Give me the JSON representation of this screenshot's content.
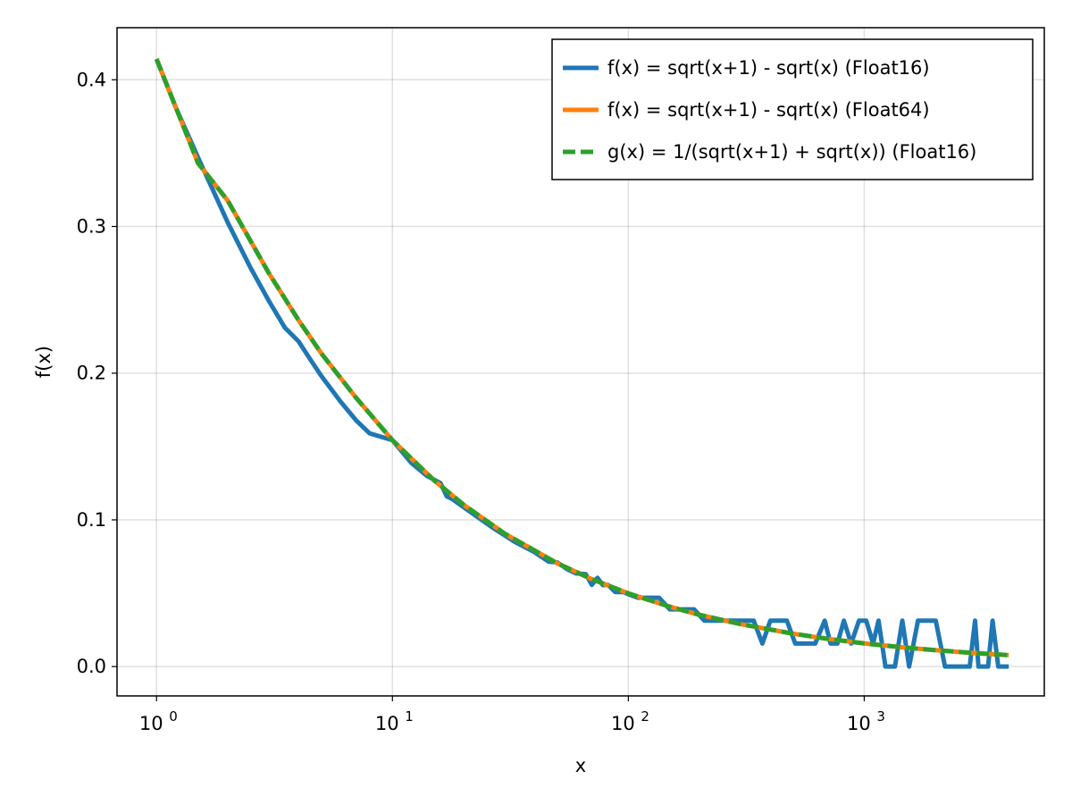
{
  "chart_data": {
    "type": "line",
    "title": "",
    "xlabel": "x",
    "ylabel": "f(x)",
    "xscale": "log10",
    "xlim": [
      0.68,
      5800
    ],
    "ylim": [
      -0.02,
      0.4355
    ],
    "grid": true,
    "legend_position": "top-right",
    "x_ticks": [
      {
        "value": 1,
        "base": "10",
        "exp": "0"
      },
      {
        "value": 10,
        "base": "10",
        "exp": "1"
      },
      {
        "value": 100,
        "base": "10",
        "exp": "2"
      },
      {
        "value": 1000,
        "base": "10",
        "exp": "3"
      }
    ],
    "y_ticks": [
      {
        "value": 0.0,
        "label": "0.0"
      },
      {
        "value": 0.1,
        "label": "0.1"
      },
      {
        "value": 0.2,
        "label": "0.2"
      },
      {
        "value": 0.3,
        "label": "0.3"
      },
      {
        "value": 0.4,
        "label": "0.4"
      }
    ],
    "series": [
      {
        "name": "f(x) = sqrt(x+1) - sqrt(x) (Float16)",
        "color": "#1f77b4",
        "dash": "solid",
        "x": [
          1,
          1.2,
          1.5,
          2,
          2.5,
          3,
          3.5,
          4,
          4.5,
          5,
          6,
          7,
          8,
          10,
          12,
          14,
          16,
          17,
          18,
          22,
          27,
          33,
          40,
          46,
          50,
          55,
          60,
          66,
          70,
          74,
          78,
          82,
          88,
          95,
          102,
          110,
          122,
          135,
          150,
          170,
          190,
          210,
          240,
          270,
          300,
          340,
          370,
          400,
          430,
          470,
          510,
          560,
          620,
          680,
          720,
          770,
          820,
          880,
          950,
          1020,
          1090,
          1150,
          1230,
          1350,
          1450,
          1550,
          1690,
          1850,
          2010,
          2200,
          2400,
          2600,
          2800,
          2950,
          3050,
          3200,
          3350,
          3500,
          3700,
          3900,
          4100
        ],
        "y": [
          0.414,
          0.382,
          0.347,
          0.303,
          0.272,
          0.249,
          0.231,
          0.2217,
          0.209,
          0.198,
          0.181,
          0.168,
          0.159,
          0.1543,
          0.139,
          0.13,
          0.125,
          0.116,
          0.114,
          0.104,
          0.094,
          0.085,
          0.078,
          0.0715,
          0.071,
          0.0664,
          0.0635,
          0.063,
          0.0557,
          0.0605,
          0.0555,
          0.0557,
          0.0508,
          0.0508,
          0.0488,
          0.0469,
          0.0469,
          0.0469,
          0.039,
          0.039,
          0.039,
          0.0313,
          0.0313,
          0.0313,
          0.0313,
          0.0313,
          0.0157,
          0.0313,
          0.0313,
          0.0313,
          0.0157,
          0.0157,
          0.0157,
          0.0313,
          0.0157,
          0.0157,
          0.0313,
          0.0157,
          0.0313,
          0.0313,
          0.0157,
          0.0313,
          0,
          0,
          0.0313,
          0,
          0.0313,
          0.0313,
          0.0313,
          0,
          0,
          0,
          0,
          0.0313,
          0,
          0,
          0,
          0.0313,
          0,
          0,
          0
        ]
      },
      {
        "name": "f(x) = sqrt(x+1) - sqrt(x) (Float64)",
        "color": "#ff7f0e",
        "dash": "solid",
        "x": [
          1,
          1.5,
          2,
          3,
          4,
          5,
          7,
          10,
          15,
          20,
          30,
          50,
          70,
          100,
          150,
          200,
          300,
          500,
          700,
          1000,
          1500,
          2000,
          3000,
          4100
        ],
        "y": [
          0.4142,
          0.3431,
          0.3178,
          0.2679,
          0.2361,
          0.2134,
          0.1834,
          0.1543,
          0.127,
          0.1104,
          0.0905,
          0.0704,
          0.0596,
          0.0499,
          0.0408,
          0.0353,
          0.0289,
          0.0224,
          0.0189,
          0.0158,
          0.0129,
          0.0112,
          0.0091,
          0.0078
        ]
      },
      {
        "name": "g(x) = 1/(sqrt(x+1) + sqrt(x)) (Float16)",
        "color": "#2ca02c",
        "dash": "dashed",
        "x": [
          1,
          1.5,
          2,
          3,
          4,
          5,
          7,
          10,
          15,
          20,
          30,
          50,
          70,
          100,
          150,
          200,
          300,
          500,
          700,
          1000,
          1500,
          2000,
          3000,
          4100
        ],
        "y": [
          0.4142,
          0.3431,
          0.3178,
          0.2679,
          0.2361,
          0.2134,
          0.1834,
          0.1543,
          0.127,
          0.1104,
          0.0905,
          0.0704,
          0.0596,
          0.0499,
          0.0408,
          0.0353,
          0.0289,
          0.0224,
          0.0189,
          0.0158,
          0.0129,
          0.0112,
          0.0091,
          0.0078
        ]
      }
    ]
  }
}
